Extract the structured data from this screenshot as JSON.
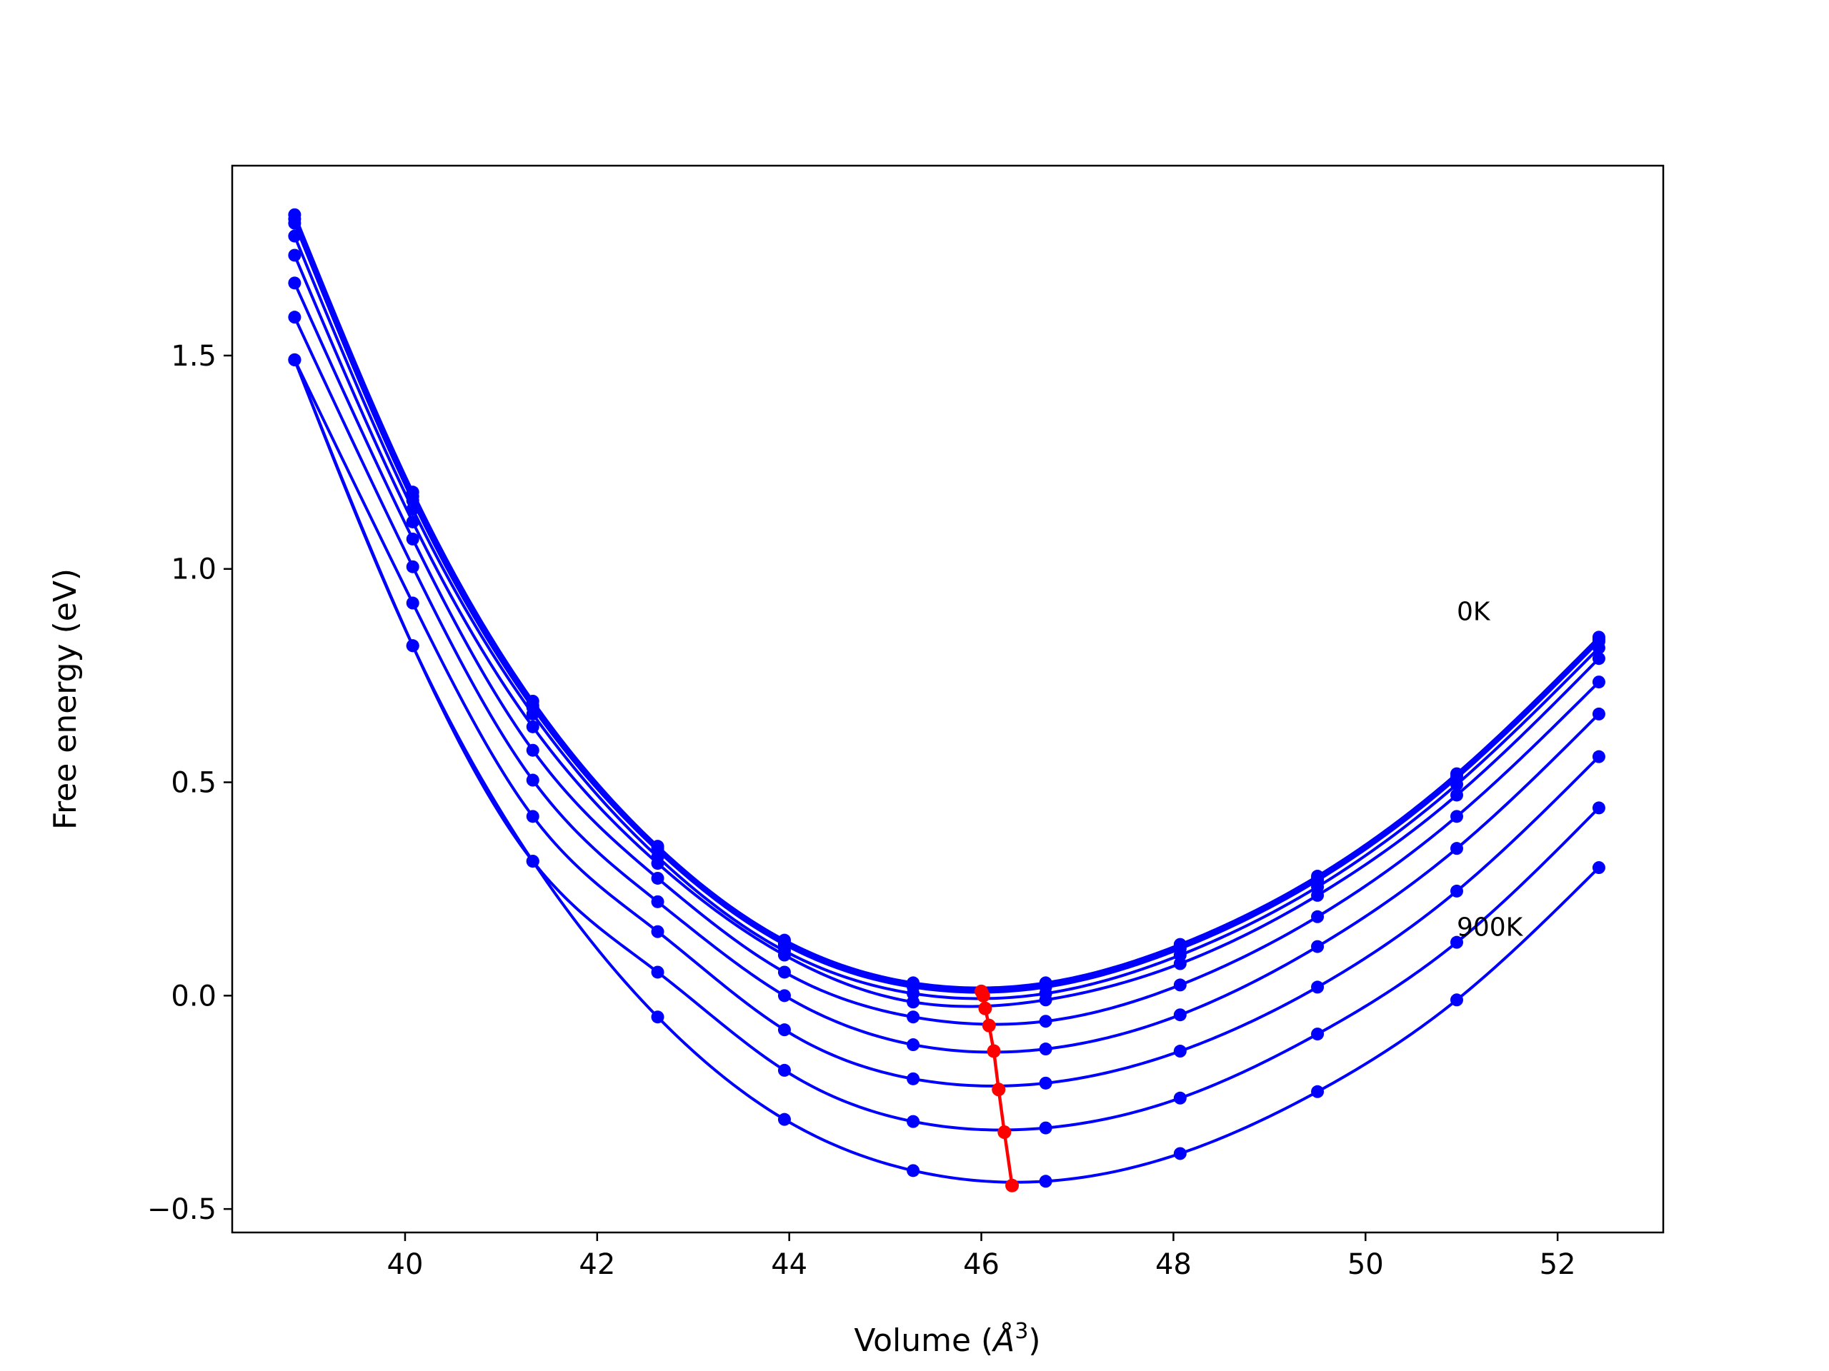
{
  "chart_data": {
    "type": "line",
    "title": "",
    "xlabel": {
      "prefix": "Volume (",
      "unit": "Å",
      "exponent": "3",
      "suffix": ")"
    },
    "ylabel": "Free energy (eV)",
    "xlim": [
      38.2,
      53.1
    ],
    "ylim": [
      -0.555,
      1.945
    ],
    "xticks": [
      40,
      42,
      44,
      46,
      48,
      50,
      52
    ],
    "xtick_labels": [
      "40",
      "42",
      "44",
      "46",
      "48",
      "50",
      "52"
    ],
    "yticks": [
      -0.5,
      0.0,
      0.5,
      1.0,
      1.5
    ],
    "ytick_labels": [
      "−0.5",
      "0.0",
      "0.5",
      "1.0",
      "1.5"
    ],
    "grid": false,
    "legend": "none",
    "colors": {
      "curves": "#0000ff",
      "minimum_path": "#ff0000",
      "axes": "#000000"
    },
    "volumes": [
      38.85,
      40.08,
      41.33,
      42.63,
      43.95,
      45.29,
      46.67,
      48.07,
      49.5,
      50.95,
      52.43
    ],
    "series": [
      {
        "values": [
          1.83,
          1.18,
          0.69,
          0.35,
          0.13,
          0.03,
          0.03,
          0.12,
          0.28,
          0.52,
          0.84
        ]
      },
      {
        "values": [
          1.82,
          1.17,
          0.68,
          0.345,
          0.125,
          0.025,
          0.025,
          0.115,
          0.275,
          0.515,
          0.835
        ]
      },
      {
        "values": [
          1.81,
          1.16,
          0.675,
          0.34,
          0.12,
          0.02,
          0.02,
          0.11,
          0.27,
          0.51,
          0.83
        ]
      },
      {
        "values": [
          1.78,
          1.14,
          0.66,
          0.325,
          0.105,
          0.005,
          0.005,
          0.095,
          0.255,
          0.495,
          0.815
        ]
      },
      {
        "values": [
          1.735,
          1.11,
          0.63,
          0.31,
          0.095,
          -0.015,
          -0.01,
          0.075,
          0.235,
          0.47,
          0.79
        ]
      },
      {
        "values": [
          1.67,
          1.07,
          0.575,
          0.275,
          0.055,
          -0.05,
          -0.06,
          0.025,
          0.185,
          0.42,
          0.735
        ]
      },
      {
        "values": [
          1.59,
          1.005,
          0.505,
          0.22,
          0.0,
          -0.115,
          -0.125,
          -0.045,
          0.115,
          0.345,
          0.66
        ]
      },
      {
        "values": [
          1.49,
          0.92,
          0.42,
          0.15,
          -0.08,
          -0.195,
          -0.205,
          -0.13,
          0.02,
          0.245,
          0.56
        ]
      },
      {
        "values": [
          1.49,
          0.82,
          0.315,
          0.055,
          -0.175,
          -0.295,
          -0.31,
          -0.24,
          -0.09,
          0.125,
          0.44
        ]
      },
      {
        "values": [
          1.49,
          0.82,
          0.315,
          -0.05,
          -0.29,
          -0.41,
          -0.435,
          -0.37,
          -0.225,
          -0.01,
          0.3
        ]
      }
    ],
    "minimum_path": {
      "x": [
        46.0,
        46.02,
        46.04,
        46.08,
        46.13,
        46.18,
        46.24,
        46.32
      ],
      "y": [
        0.01,
        0.0,
        -0.03,
        -0.07,
        -0.13,
        -0.22,
        -0.32,
        -0.445
      ]
    },
    "annotations": [
      {
        "text": "0K",
        "x": 50.95,
        "y": 0.9
      },
      {
        "text": "900K",
        "x": 50.95,
        "y": 0.16
      }
    ]
  }
}
